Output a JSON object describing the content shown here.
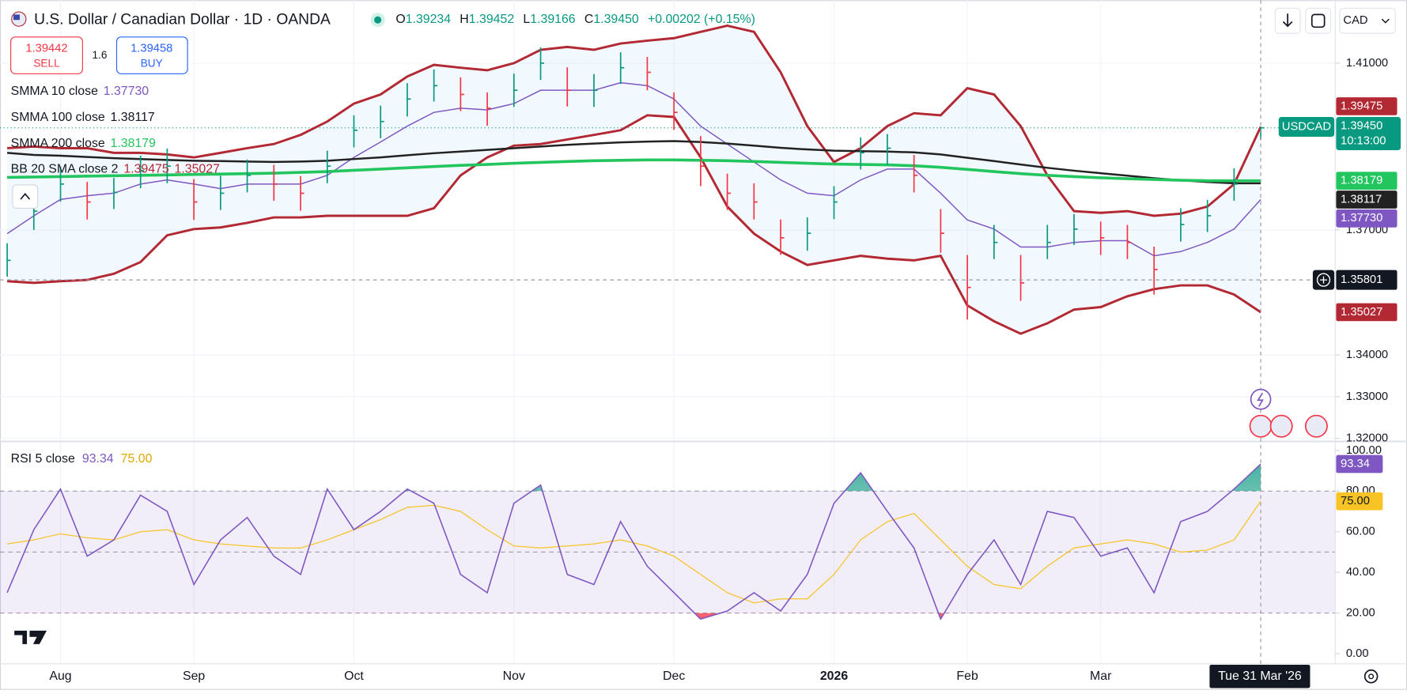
{
  "header": {
    "title": "U.S. Dollar / Canadian Dollar · 1D · OANDA",
    "ohlc": [
      {
        "key": "O",
        "value": "1.39234"
      },
      {
        "key": "H",
        "value": "1.39452"
      },
      {
        "key": "L",
        "value": "1.39166"
      },
      {
        "key": "C",
        "value": "1.39450"
      }
    ],
    "change": "+0.00202 (+0.15%)",
    "currency": "CAD"
  },
  "trade": {
    "sell_price": "1.39442",
    "sell": "SELL",
    "spread": "1.6",
    "buy_price": "1.39458",
    "buy": "BUY"
  },
  "crosshair": {
    "price": 1.35801,
    "date": "Tue 31 Mar '26"
  },
  "chart_data": [
    {
      "type": "ohlc",
      "symbol": "USDCAD",
      "last_label": "1.39450",
      "countdown": "10:13:00",
      "categories": [
        null,
        null,
        "Aug",
        null,
        null,
        null,
        null,
        "Sep",
        null,
        null,
        null,
        null,
        null,
        "Oct",
        null,
        null,
        null,
        null,
        null,
        "Nov",
        null,
        null,
        null,
        null,
        null,
        "Dec",
        null,
        null,
        null,
        null,
        null,
        "2026",
        null,
        null,
        null,
        null,
        "Feb",
        null,
        null,
        null,
        null,
        "Mar",
        null,
        null,
        null,
        null,
        null,
        null
      ],
      "high": [
        1.3668,
        1.3782,
        1.3852,
        1.3815,
        1.3825,
        1.3878,
        1.3895,
        1.3822,
        1.383,
        1.3869,
        1.3856,
        1.3829,
        1.389,
        1.3975,
        1.3998,
        1.4052,
        1.4085,
        1.4066,
        1.403,
        1.4075,
        1.4138,
        1.409,
        1.4074,
        1.4126,
        1.4115,
        1.403,
        1.3925,
        1.3835,
        1.3812,
        1.3725,
        1.373,
        1.3805,
        1.3922,
        1.393,
        1.388,
        1.375,
        1.364,
        1.3712,
        1.364,
        1.3712,
        1.3738,
        1.372,
        1.3712,
        1.366,
        1.3752,
        1.3772,
        1.3848,
        1.39452
      ],
      "low": [
        1.3588,
        1.37,
        1.3768,
        1.3725,
        1.375,
        1.38,
        1.3812,
        1.3724,
        1.3748,
        1.379,
        1.377,
        1.3746,
        1.3812,
        1.3898,
        1.392,
        1.3972,
        1.4008,
        1.3985,
        1.395,
        1.3995,
        1.406,
        1.3996,
        1.3995,
        1.405,
        1.4035,
        1.394,
        1.3805,
        1.3748,
        1.3725,
        1.364,
        1.365,
        1.3726,
        1.3845,
        1.3856,
        1.379,
        1.3645,
        1.3485,
        1.363,
        1.353,
        1.363,
        1.3664,
        1.364,
        1.363,
        1.3545,
        1.3672,
        1.3695,
        1.377,
        1.39166
      ],
      "close": [
        1.3627,
        1.3745,
        1.381,
        1.3767,
        1.379,
        1.3842,
        1.3853,
        1.3767,
        1.3788,
        1.3831,
        1.381,
        1.3788,
        1.3853,
        1.3939,
        1.396,
        1.4014,
        1.4046,
        1.4025,
        1.3992,
        1.4035,
        1.41,
        1.4035,
        1.4035,
        1.4089,
        1.4078,
        1.3982,
        1.3853,
        1.3788,
        1.3767,
        1.3681,
        1.3692,
        1.3767,
        1.3885,
        1.3896,
        1.3831,
        1.3692,
        1.3562,
        1.367,
        1.3573,
        1.367,
        1.3702,
        1.3681,
        1.367,
        1.3605,
        1.3713,
        1.3734,
        1.381,
        1.3945
      ],
      "up_color": "#089981",
      "down_color": "#f23645",
      "lines": [
        {
          "name": "SMMA 10 close",
          "color": "#7e57c2",
          "width": 1.3,
          "last_label": "1.37730",
          "values": [
            1.3691,
            1.3734,
            1.3773,
            1.3782,
            1.3788,
            1.381,
            1.382,
            1.381,
            1.3799,
            1.381,
            1.381,
            1.381,
            1.3831,
            1.3874,
            1.3911,
            1.3949,
            1.3982,
            1.3992,
            1.3988,
            1.4003,
            1.4035,
            1.4035,
            1.4035,
            1.4053,
            1.4046,
            1.4014,
            1.3949,
            1.3906,
            1.3863,
            1.382,
            1.3788,
            1.3782,
            1.382,
            1.3846,
            1.3846,
            1.3788,
            1.3724,
            1.3702,
            1.3659,
            1.3659,
            1.367,
            1.3674,
            1.3674,
            1.3638,
            1.3648,
            1.367,
            1.3702,
            1.3773
          ]
        },
        {
          "name": "SMMA 100 close",
          "color": "#222222",
          "width": 2.2,
          "last_label": "1.38117",
          "values": [
            1.3885,
            1.388,
            1.3878,
            1.3875,
            1.3872,
            1.387,
            1.3868,
            1.3866,
            1.3865,
            1.3864,
            1.3863,
            1.3864,
            1.3866,
            1.387,
            1.3874,
            1.3879,
            1.3884,
            1.3888,
            1.3892,
            1.3896,
            1.39,
            1.3904,
            1.3907,
            1.391,
            1.3912,
            1.3913,
            1.3911,
            1.3907,
            1.3902,
            1.3897,
            1.3893,
            1.389,
            1.3889,
            1.3888,
            1.3886,
            1.3881,
            1.3873,
            1.3865,
            1.3857,
            1.3849,
            1.3842,
            1.3836,
            1.383,
            1.3824,
            1.3819,
            1.3815,
            1.3812,
            1.38117
          ]
        },
        {
          "name": "SMMA 200 close",
          "color": "#22c55e",
          "width": 3.2,
          "last_label": "1.38179",
          "values": [
            1.3826,
            1.3827,
            1.3828,
            1.3829,
            1.383,
            1.3831,
            1.3832,
            1.3833,
            1.3834,
            1.3835,
            1.3836,
            1.3838,
            1.384,
            1.3843,
            1.3846,
            1.3849,
            1.3852,
            1.3855,
            1.3857,
            1.386,
            1.3862,
            1.3864,
            1.3866,
            1.3867,
            1.3868,
            1.3868,
            1.3867,
            1.3866,
            1.3864,
            1.3862,
            1.386,
            1.3858,
            1.3857,
            1.3856,
            1.3854,
            1.385,
            1.3845,
            1.384,
            1.3835,
            1.3831,
            1.3828,
            1.3825,
            1.3823,
            1.3821,
            1.3819,
            1.3818,
            1.3818,
            1.38179
          ]
        }
      ],
      "bands": {
        "name": "BB 20 SMA close 2",
        "color": "#b22833",
        "fill": "#2196f3",
        "upper_label": "1.39475",
        "lower_label": "1.35027",
        "upper": [
          1.3896,
          1.39,
          1.3896,
          1.3896,
          1.3885,
          1.3885,
          1.3881,
          1.3874,
          1.3885,
          1.3896,
          1.3906,
          1.3928,
          1.396,
          1.4003,
          1.4025,
          1.4068,
          1.4096,
          1.4089,
          1.4083,
          1.41,
          1.4132,
          1.4139,
          1.4132,
          1.4147,
          1.4154,
          1.416,
          1.4175,
          1.419,
          1.4175,
          1.4078,
          1.3949,
          1.3863,
          1.3896,
          1.3949,
          1.398,
          1.3975,
          1.404,
          1.4025,
          1.3949,
          1.3831,
          1.3745,
          1.3741,
          1.3745,
          1.3734,
          1.3739,
          1.3756,
          1.381,
          1.39475
        ],
        "lower": [
          1.3577,
          1.3573,
          1.3577,
          1.358,
          1.3595,
          1.3623,
          1.3687,
          1.3702,
          1.3706,
          1.3717,
          1.373,
          1.373,
          1.3734,
          1.3734,
          1.3734,
          1.3734,
          1.3752,
          1.3831,
          1.3874,
          1.3902,
          1.3906,
          1.3917,
          1.3928,
          1.3939,
          1.3975,
          1.3971,
          1.3874,
          1.3756,
          1.3691,
          1.3648,
          1.3616,
          1.3627,
          1.3638,
          1.3631,
          1.3627,
          1.3638,
          1.3519,
          1.3481,
          1.3451,
          1.3476,
          1.3509,
          1.3515,
          1.3541,
          1.3558,
          1.3567,
          1.3567,
          1.3545,
          1.35027
        ]
      },
      "ylim": [
        1.3197,
        1.4251
      ],
      "yticks": [
        {
          "value": 1.41,
          "label": "1.41000"
        },
        {
          "value": 1.37,
          "label": "1.37000"
        },
        {
          "value": 1.34,
          "label": "1.34000"
        },
        {
          "value": 1.33,
          "label": "1.33000"
        },
        {
          "value": 1.32,
          "label": "1.32000"
        }
      ],
      "grid": true
    },
    {
      "type": "line",
      "title": "RSI 5 close",
      "series": [
        {
          "color": "#7e57c2",
          "last_label": "93.34",
          "values": [
            30,
            61,
            81,
            48,
            56,
            78,
            70,
            34,
            56,
            67,
            48,
            39,
            81,
            61,
            70,
            81,
            74,
            39,
            30,
            74,
            83,
            39,
            34,
            65,
            43,
            30,
            17,
            21,
            30,
            21,
            39,
            74,
            89,
            70,
            52,
            17,
            39,
            56,
            34,
            70,
            67,
            48,
            52,
            30,
            65,
            70,
            81,
            93.34
          ]
        },
        {
          "color": "#f7c325",
          "last_label": "75.00",
          "values": [
            54,
            56,
            59,
            57,
            56,
            60,
            61,
            56,
            54,
            53,
            52,
            52,
            56,
            61,
            66,
            72,
            73,
            70,
            61,
            53,
            52,
            53,
            54,
            56,
            53,
            48,
            39,
            30,
            25,
            27,
            27,
            39,
            56,
            65,
            69,
            56,
            43,
            34,
            32,
            43,
            52,
            54,
            56,
            54,
            50,
            51,
            56,
            75
          ]
        }
      ],
      "levels": [
        80,
        50,
        20
      ],
      "ylim": [
        -5,
        104
      ],
      "yticks": [
        {
          "value": 100,
          "label": "100.00"
        },
        {
          "value": 80,
          "label": "80.00"
        },
        {
          "value": 60,
          "label": "60.00"
        },
        {
          "value": 40,
          "label": "40.00"
        },
        {
          "value": 20,
          "label": "20.00"
        },
        {
          "value": 0,
          "label": "0.00"
        }
      ]
    }
  ]
}
